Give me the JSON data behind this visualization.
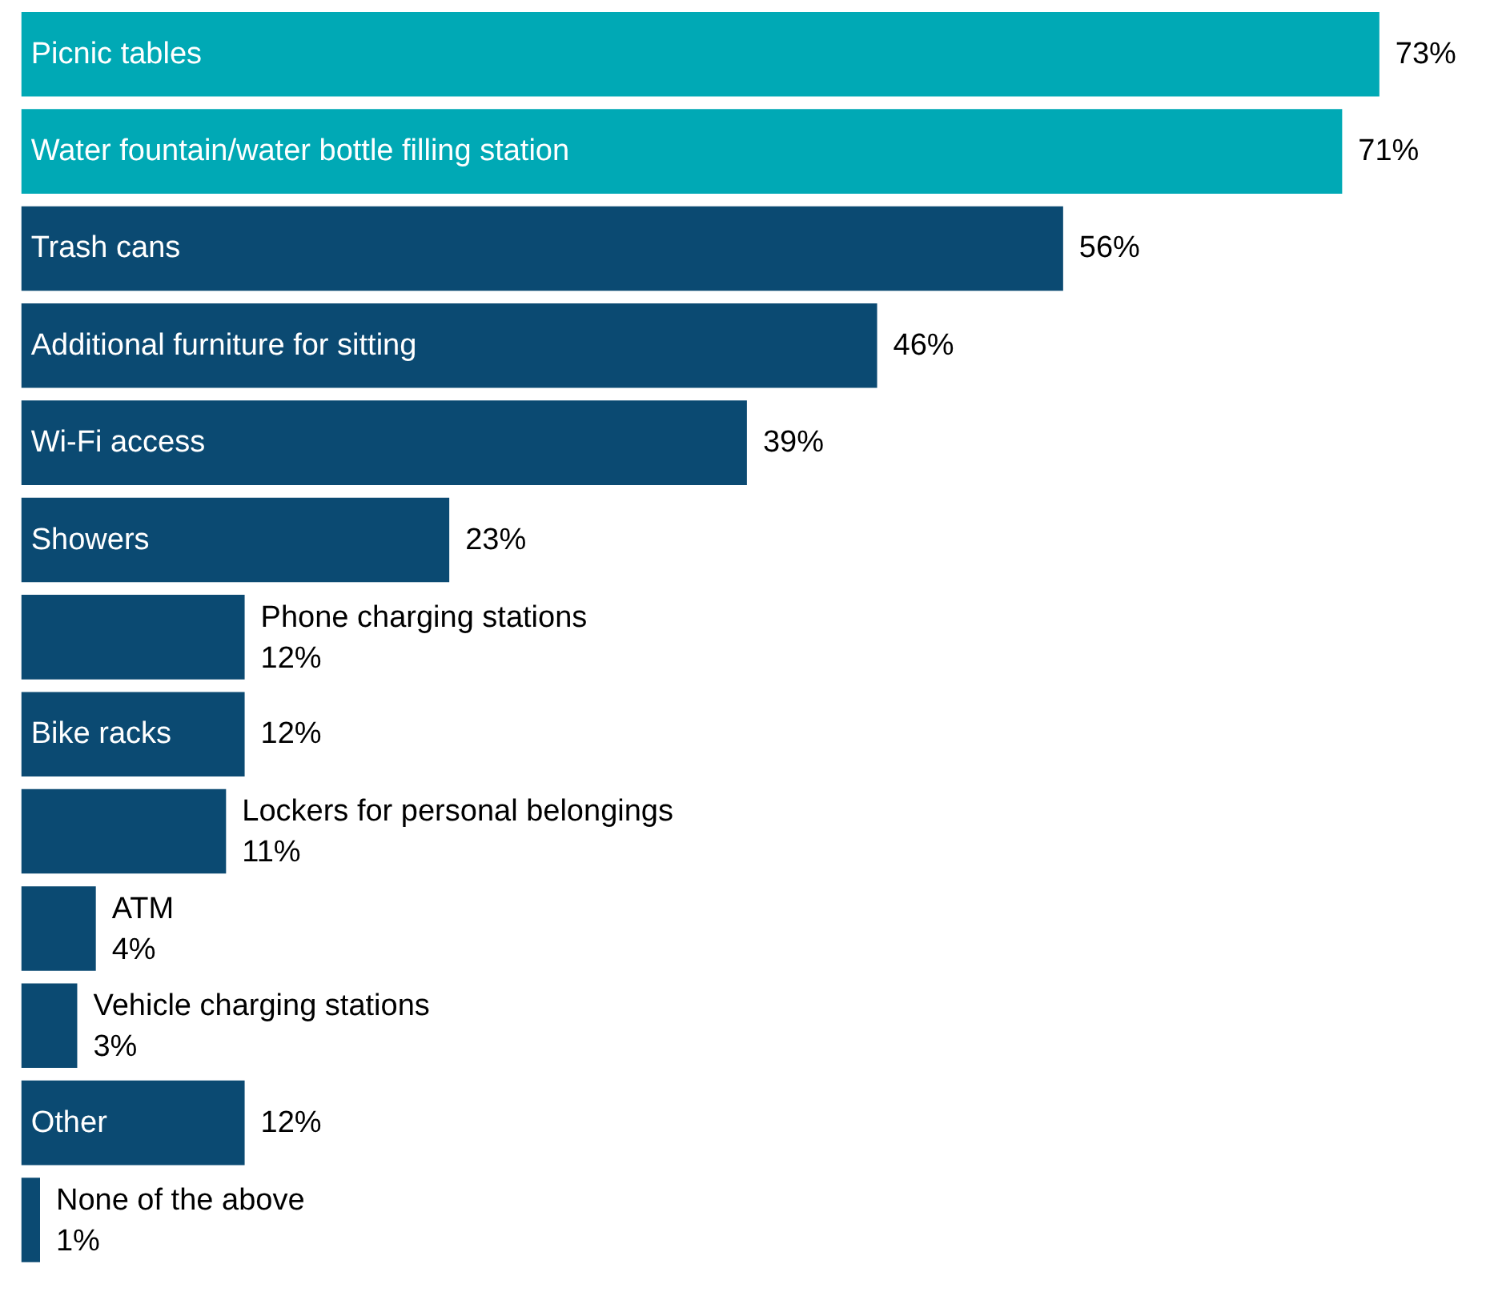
{
  "chart_data": {
    "type": "bar",
    "orientation": "horizontal",
    "categories": [
      "Picnic tables",
      "Water fountain/water bottle filling station",
      "Trash cans",
      "Additional furniture for sitting",
      "Wi-Fi access",
      "Showers",
      "Phone charging stations",
      "Bike racks",
      "Lockers for personal belongings",
      "ATM",
      "Vehicle charging stations",
      "Other",
      "None of the above"
    ],
    "values": [
      73,
      71,
      56,
      46,
      39,
      23,
      12,
      12,
      11,
      4,
      3,
      12,
      1
    ],
    "value_labels": [
      "73%",
      "71%",
      "56%",
      "46%",
      "39%",
      "23%",
      "12%",
      "12%",
      "11%",
      "4%",
      "3%",
      "12%",
      "1%"
    ],
    "colors": [
      "#00a9b5",
      "#00a9b5",
      "#0b4a72",
      "#0b4a72",
      "#0b4a72",
      "#0b4a72",
      "#0b4a72",
      "#0b4a72",
      "#0b4a72",
      "#0b4a72",
      "#0b4a72",
      "#0b4a72",
      "#0b4a72"
    ]
  }
}
